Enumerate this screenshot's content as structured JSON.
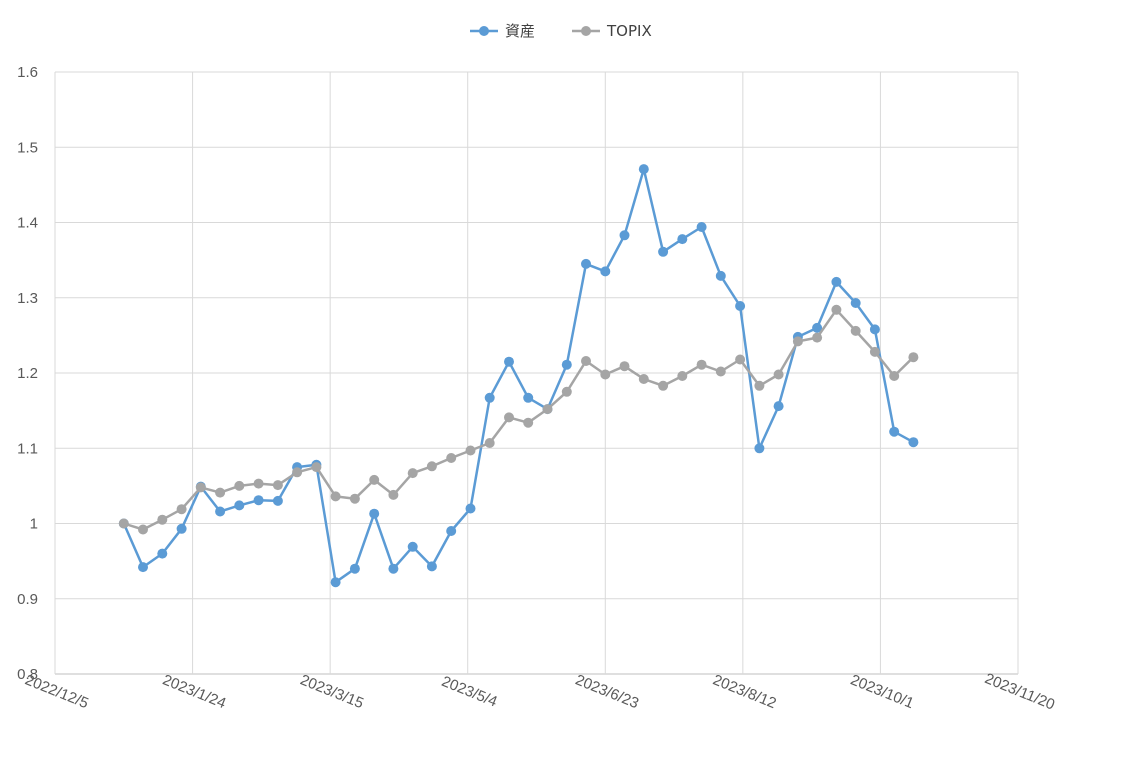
{
  "chart_data": {
    "type": "line",
    "title": "",
    "xlabel": "",
    "ylabel": "",
    "x_axis": {
      "type": "date",
      "min": "2022-12-05",
      "max": "2023-11-20",
      "tick_step_days": 50,
      "tick_labels": [
        "2022/12/5",
        "2023/1/24",
        "2023/3/15",
        "2023/5/4",
        "2023/6/23",
        "2023/8/12",
        "2023/10/1",
        "2023/11/20"
      ]
    },
    "y_axis": {
      "min": 0.8,
      "max": 1.6,
      "step": 0.1,
      "tick_labels": [
        "0.8",
        "0.9",
        "1",
        "1.1",
        "1.2",
        "1.3",
        "1.4",
        "1.5",
        "1.6"
      ]
    },
    "grid": true,
    "legend": {
      "position": "top"
    },
    "x": [
      "2022-12-30",
      "2023-01-06",
      "2023-01-13",
      "2023-01-20",
      "2023-01-27",
      "2023-02-03",
      "2023-02-10",
      "2023-02-17",
      "2023-02-24",
      "2023-03-03",
      "2023-03-10",
      "2023-03-17",
      "2023-03-24",
      "2023-03-31",
      "2023-04-07",
      "2023-04-14",
      "2023-04-21",
      "2023-04-28",
      "2023-05-05",
      "2023-05-12",
      "2023-05-19",
      "2023-05-26",
      "2023-06-02",
      "2023-06-09",
      "2023-06-16",
      "2023-06-23",
      "2023-06-30",
      "2023-07-07",
      "2023-07-14",
      "2023-07-21",
      "2023-07-28",
      "2023-08-04",
      "2023-08-11",
      "2023-08-18",
      "2023-08-25",
      "2023-09-01",
      "2023-09-08",
      "2023-09-15",
      "2023-09-22",
      "2023-09-29",
      "2023-10-06",
      "2023-10-13"
    ],
    "series": [
      {
        "name": "資産",
        "color": "#5B9BD5",
        "values": [
          1.0,
          0.942,
          0.96,
          0.993,
          1.049,
          1.016,
          1.024,
          1.031,
          1.03,
          1.075,
          1.078,
          0.922,
          0.94,
          1.013,
          0.94,
          0.969,
          0.943,
          0.99,
          1.02,
          1.167,
          1.215,
          1.167,
          1.152,
          1.211,
          1.345,
          1.335,
          1.383,
          1.471,
          1.361,
          1.378,
          1.394,
          1.329,
          1.289,
          1.1,
          1.156,
          1.248,
          1.26,
          1.321,
          1.293,
          1.258,
          1.122,
          1.108
        ]
      },
      {
        "name": "TOPIX",
        "color": "#A5A5A5",
        "values": [
          1.0,
          0.992,
          1.005,
          1.019,
          1.048,
          1.041,
          1.05,
          1.053,
          1.051,
          1.068,
          1.075,
          1.036,
          1.033,
          1.058,
          1.038,
          1.067,
          1.076,
          1.087,
          1.097,
          1.107,
          1.141,
          1.134,
          1.152,
          1.175,
          1.216,
          1.198,
          1.209,
          1.192,
          1.183,
          1.196,
          1.211,
          1.202,
          1.218,
          1.183,
          1.198,
          1.242,
          1.247,
          1.284,
          1.256,
          1.228,
          1.196,
          1.221
        ]
      }
    ]
  }
}
